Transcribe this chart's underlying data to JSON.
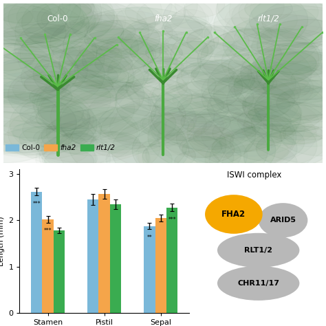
{
  "bar_groups": [
    "Stamen",
    "Pistil",
    "Sepal"
  ],
  "series": [
    "Col-0",
    "fha2",
    "rlt1/2"
  ],
  "colors": [
    "#7ab8d9",
    "#f5a54a",
    "#3aac50"
  ],
  "values": [
    [
      2.62,
      2.02,
      1.78
    ],
    [
      2.45,
      2.57,
      2.35
    ],
    [
      1.88,
      2.05,
      2.28
    ]
  ],
  "errors": [
    [
      0.08,
      0.07,
      0.06
    ],
    [
      0.12,
      0.1,
      0.1
    ],
    [
      0.07,
      0.07,
      0.08
    ]
  ],
  "significance": [
    [
      "***",
      "***",
      ""
    ],
    [
      "",
      "",
      ""
    ],
    [
      "**",
      "",
      "***"
    ]
  ],
  "ylabel": "Length (mm)",
  "ylim": [
    0,
    3.1
  ],
  "yticks": [
    0,
    1,
    2,
    3
  ],
  "iswi_title": "ISWI complex",
  "photo_top_labels": [
    "Col-0",
    "fha2",
    "rlt1/2"
  ],
  "photo_bg": "#1c3520",
  "fha2_color": "#F5A800",
  "gray_color": "#B8B8B8",
  "sig_yoffset": 0.05
}
